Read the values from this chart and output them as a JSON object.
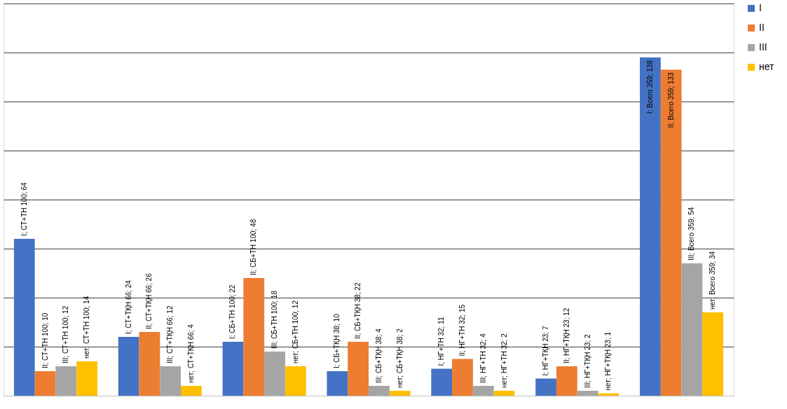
{
  "chart_data": {
    "type": "bar",
    "categories": [
      null,
      null,
      null,
      null,
      null,
      null,
      null
    ],
    "series": [
      {
        "name": "I",
        "color": "#4472c4",
        "values": [
          64,
          24,
          22,
          10,
          11,
          7,
          138
        ],
        "value_labels": [
          "I; СТ+ТН 100; 64",
          "I; СТ+ТҚН 66; 24",
          "I; СБ+ТН 100; 22",
          "I; СБ+ТҚН 38; 10",
          "I; НГ+ТН 32; 11",
          "I; НГ+ТҚН 23; 7",
          "I; Всего 359; 138"
        ]
      },
      {
        "name": "II",
        "color": "#ed7d31",
        "values": [
          10,
          26,
          48,
          22,
          15,
          12,
          133
        ],
        "value_labels": [
          "II; СТ+ТН 100; 10",
          "II; СТ+ТҚН 66; 26",
          "II; СБ+ТН 100; 48",
          "II; СБ+ТҚН 38; 22",
          "II; НГ+ТН 32; 15",
          "II; НГ+ТҚН 23; 12",
          "II; Всего 359; 133"
        ]
      },
      {
        "name": "III",
        "color": "#a5a5a5",
        "values": [
          12,
          12,
          18,
          4,
          4,
          2,
          54
        ],
        "value_labels": [
          "III; СТ+ТН 100; 12",
          "III; СТ+ТҚН 66; 12",
          "III; СБ+ТН 100; 18",
          "III; СБ+ТҚН 38; 4",
          "III; НГ+ТН 32; 4",
          "III; НГ+ТҚН 23; 2",
          "III; Всего 359; 54"
        ]
      },
      {
        "name": "нет",
        "color": "#ffc000",
        "values": [
          14,
          4,
          12,
          2,
          2,
          1,
          34
        ],
        "value_labels": [
          "нет; СТ+ТН 100; 14",
          "нет; СТ+ТҚН 66; 4",
          "нет; СБ+ТН 100; 12",
          "нет; СБ+ТҚН 38; 2",
          "нет; НГ+ТН 32; 2",
          "нет; НГ+ТҚН 23; 1",
          "нет; Всего 359; 34"
        ]
      }
    ],
    "ylim": [
      0,
      160
    ],
    "yticks": [
      {
        "value": 0,
        "label": null
      },
      {
        "value": 20,
        "label": null
      },
      {
        "value": 40,
        "label": null
      },
      {
        "value": 60,
        "label": null
      },
      {
        "value": 80,
        "label": null
      },
      {
        "value": 100,
        "label": null
      },
      {
        "value": 120,
        "label": null
      },
      {
        "value": 140,
        "label": null
      },
      {
        "value": 160,
        "label": null
      }
    ],
    "tick_labels": false,
    "grid": "y",
    "legend": "right"
  }
}
